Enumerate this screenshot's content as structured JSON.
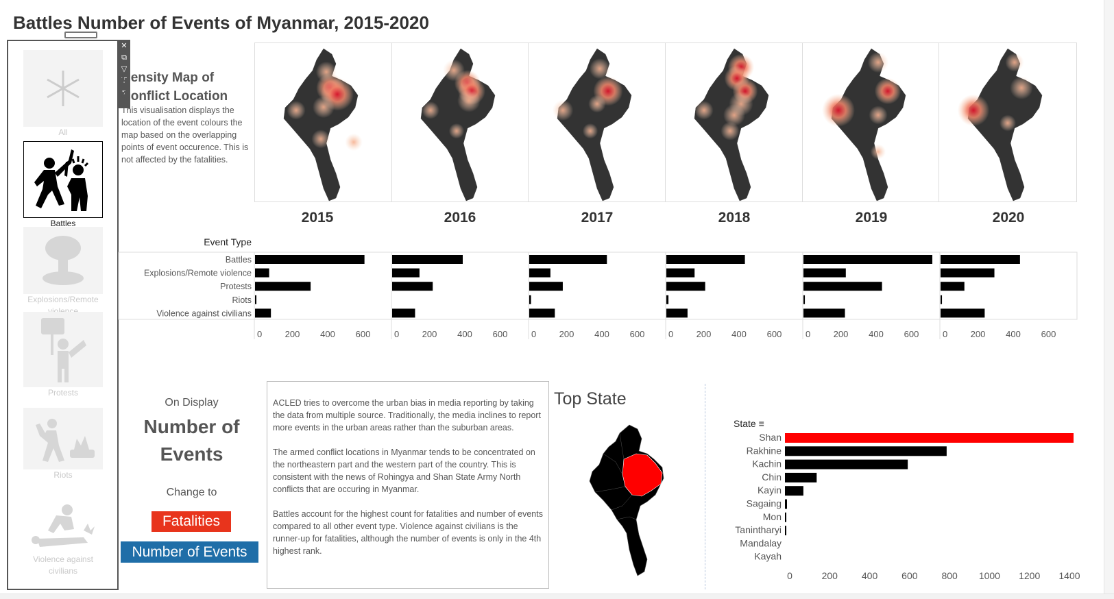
{
  "page_title": "Battles Number of Events of Myanmar, 2015-2020",
  "panel_tools": {
    "close_icon": "close-icon",
    "popout_icon": "popout-icon",
    "filter_icon": "filter-icon",
    "pin_icon": "pin-icon",
    "menu_icon": "chevron-down-icon"
  },
  "filters": [
    {
      "label": "All",
      "icon": "asterisk-icon",
      "selected": false
    },
    {
      "label": "Battles",
      "icon": "battles-icon",
      "selected": true
    },
    {
      "label": "Explosions/Remote violence",
      "icon": "explosion-icon",
      "selected": false
    },
    {
      "label": "Protests",
      "icon": "protest-icon",
      "selected": false
    },
    {
      "label": "Riots",
      "icon": "riot-icon",
      "selected": false
    },
    {
      "label": "Violence against civilians",
      "icon": "violence-icon",
      "selected": false
    }
  ],
  "density": {
    "title": "Density Map of Conflict Location",
    "description": "This visualisation displays the location of the event colours the map based on the overlapping points of event occurence. This is not affected by the fatalities."
  },
  "years": [
    "2015",
    "2016",
    "2017",
    "2018",
    "2019",
    "2020"
  ],
  "on_display": {
    "label": "On Display",
    "value": "Number of Events",
    "change_label": "Change to",
    "fatalities_button": "Fatalities",
    "events_button": "Number of Events"
  },
  "notes": [
    "ACLED tries to overcome the urban bias in media reporting by taking the data from multiple source. Traditionally, the media inclines to report more events in the urban areas rather than the suburban areas.",
    "The armed conflict locations in Myanmar tends to be concentrated on the northeastern part and the western part of the country. This is consistent with the news of Rohingya and Shan State Army North conflicts that are occuring in Myanmar.",
    "Battles account for the highest count for fatalities and number of events compared to all other event type. Violence against civilians is the runner-up for fatalities, although the number of events is only in the 4th highest rank."
  ],
  "top_state_title": "Top State",
  "chart_data": [
    {
      "type": "bar",
      "orientation": "horizontal",
      "facets": [
        "2015",
        "2016",
        "2017",
        "2018",
        "2019",
        "2020"
      ],
      "categories": [
        "Battles",
        "Explosions/Remote violence",
        "Protests",
        "Riots",
        "Violence against civilians"
      ],
      "category_header": "Event Type",
      "series": [
        {
          "facet": "2015",
          "values": [
            620,
            80,
            315,
            5,
            90
          ]
        },
        {
          "facet": "2016",
          "values": [
            400,
            155,
            230,
            0,
            130
          ]
        },
        {
          "facet": "2017",
          "values": [
            440,
            120,
            190,
            10,
            145
          ]
        },
        {
          "facet": "2018",
          "values": [
            445,
            160,
            220,
            12,
            120
          ]
        },
        {
          "facet": "2019",
          "values": [
            730,
            240,
            445,
            8,
            235
          ]
        },
        {
          "facet": "2020",
          "values": [
            450,
            305,
            135,
            8,
            250
          ]
        }
      ],
      "xlim": [
        0,
        760
      ],
      "xticks": [
        0,
        200,
        400,
        600
      ],
      "color": "#000000"
    },
    {
      "type": "bar",
      "orientation": "horizontal",
      "category_header": "State",
      "categories": [
        "Shan",
        "Rakhine",
        "Kachin",
        "Chin",
        "Kayin",
        "Sagaing",
        "Mon",
        "Tanintharyi",
        "Mandalay",
        "Kayah"
      ],
      "values": [
        1410,
        790,
        600,
        155,
        90,
        10,
        6,
        3,
        0,
        0
      ],
      "highlight": {
        "category": "Shan",
        "color": "#ff0000"
      },
      "xlim": [
        0,
        1450
      ],
      "xticks": [
        0,
        200,
        400,
        600,
        800,
        1000,
        1200,
        1400
      ],
      "color": "#000000"
    }
  ],
  "density_spots": [
    {
      "year": "2015",
      "spots": [
        [
          0.52,
          0.18,
          0.45
        ],
        [
          0.55,
          0.28,
          0.8
        ],
        [
          0.6,
          0.32,
          1.0
        ],
        [
          0.5,
          0.4,
          0.5
        ],
        [
          0.3,
          0.42,
          0.35
        ],
        [
          0.48,
          0.6,
          0.35
        ],
        [
          0.72,
          0.62,
          0.3
        ]
      ]
    },
    {
      "year": "2016",
      "spots": [
        [
          0.45,
          0.17,
          0.5
        ],
        [
          0.55,
          0.25,
          0.7
        ],
        [
          0.58,
          0.3,
          0.75
        ],
        [
          0.56,
          0.36,
          0.55
        ],
        [
          0.28,
          0.42,
          0.3
        ],
        [
          0.47,
          0.55,
          0.2
        ]
      ]
    },
    {
      "year": "2017",
      "spots": [
        [
          0.52,
          0.16,
          0.45
        ],
        [
          0.58,
          0.3,
          0.85
        ],
        [
          0.5,
          0.38,
          0.3
        ],
        [
          0.25,
          0.42,
          0.45
        ],
        [
          0.45,
          0.55,
          0.2
        ]
      ]
    },
    {
      "year": "2018",
      "spots": [
        [
          0.55,
          0.15,
          0.7
        ],
        [
          0.52,
          0.22,
          0.65
        ],
        [
          0.58,
          0.3,
          0.65
        ],
        [
          0.55,
          0.38,
          0.6
        ],
        [
          0.5,
          0.45,
          0.5
        ],
        [
          0.28,
          0.42,
          0.35
        ],
        [
          0.47,
          0.55,
          0.35
        ]
      ]
    },
    {
      "year": "2019",
      "spots": [
        [
          0.55,
          0.12,
          0.45
        ],
        [
          0.62,
          0.3,
          0.7
        ],
        [
          0.26,
          0.42,
          1.0
        ],
        [
          0.55,
          0.45,
          0.35
        ],
        [
          0.55,
          0.68,
          0.2
        ]
      ]
    },
    {
      "year": "2020",
      "spots": [
        [
          0.55,
          0.12,
          0.35
        ],
        [
          0.6,
          0.28,
          0.55
        ],
        [
          0.25,
          0.42,
          0.95
        ],
        [
          0.5,
          0.5,
          0.25
        ]
      ]
    }
  ]
}
